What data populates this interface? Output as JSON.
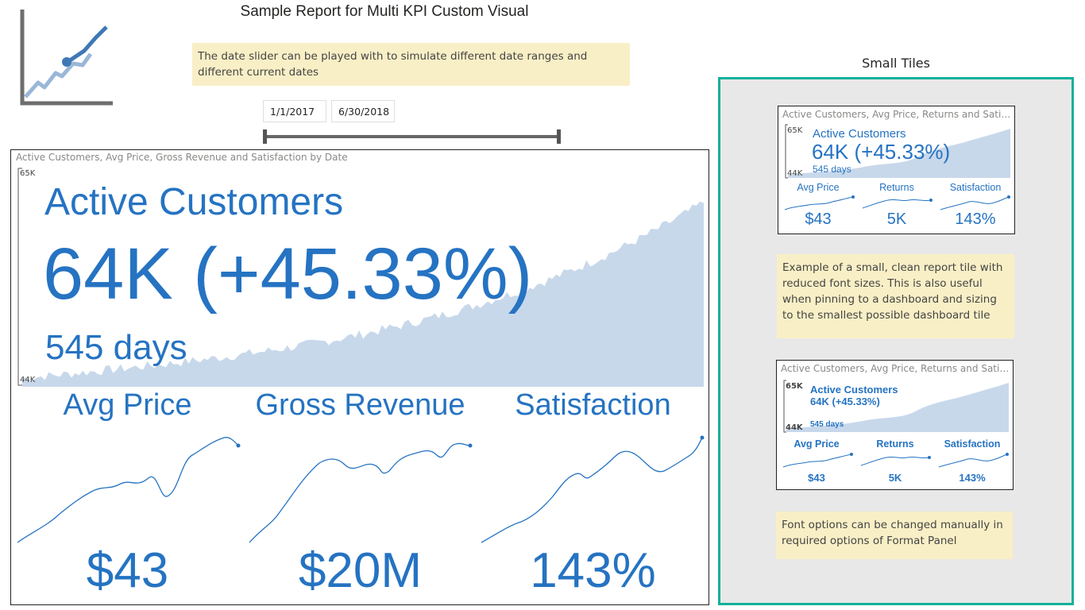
{
  "report": {
    "title": "Sample Report for Multi KPI Custom Visual"
  },
  "notes": {
    "date_slider": "The date slider can be played with to simulate different date ranges and different current dates",
    "small_tile": "Example of a small, clean report tile with reduced font sizes. This is also useful when pinning to a dashboard and sizing to the smallest possible dashboard tile",
    "font_options": "Font options can be changed manually in required options of Format Panel"
  },
  "date_slider": {
    "start": "1/1/2017",
    "end": "6/30/2018",
    "start_fraction": 0.0,
    "end_fraction": 1.0
  },
  "main_visual": {
    "title": "Active Customers, Avg Price, Gross Revenue and Satisfaction by Date",
    "y_max_label": "65K",
    "y_min_label": "44K",
    "main_kpi": {
      "name": "Active Customers",
      "value": "64K",
      "change": "(+45.33%)",
      "period": "545 days"
    },
    "sub_kpis": [
      {
        "name": "Avg Price",
        "value": "$43"
      },
      {
        "name": "Gross Revenue",
        "value": "$20M"
      },
      {
        "name": "Satisfaction",
        "value": "143%"
      }
    ]
  },
  "small_tiles": {
    "heading": "Small Tiles",
    "tile1": {
      "title": "Active Customers, Avg Price, Returns and Satisfa...",
      "y_max_label": "65K",
      "y_min_label": "44K",
      "main_name": "Active Customers",
      "main_value": "64K",
      "main_change": "(+45.33%)",
      "period": "545 days",
      "subs": [
        {
          "name": "Avg Price",
          "value": "$43"
        },
        {
          "name": "Returns",
          "value": "5K"
        },
        {
          "name": "Satisfaction",
          "value": "143%"
        }
      ]
    },
    "tile2": {
      "title": "Active Customers, Avg Price, Returns and Satisfa...",
      "y_max_label": "65K",
      "y_min_label": "44K",
      "main_name": "Active Customers",
      "main_value": "64K",
      "main_change": "(+45.33%)",
      "period": "545 days",
      "subs": [
        {
          "name": "Avg Price",
          "value": "$43"
        },
        {
          "name": "Returns",
          "value": "5K"
        },
        {
          "name": "Satisfaction",
          "value": "143%"
        }
      ]
    }
  },
  "colors": {
    "kpi_blue": "#2573c2",
    "area_fill": "#c8d8eb",
    "panel_border": "#12b19a",
    "note_bg": "#f9efc6",
    "panel_bg": "#e8e8e8"
  }
}
